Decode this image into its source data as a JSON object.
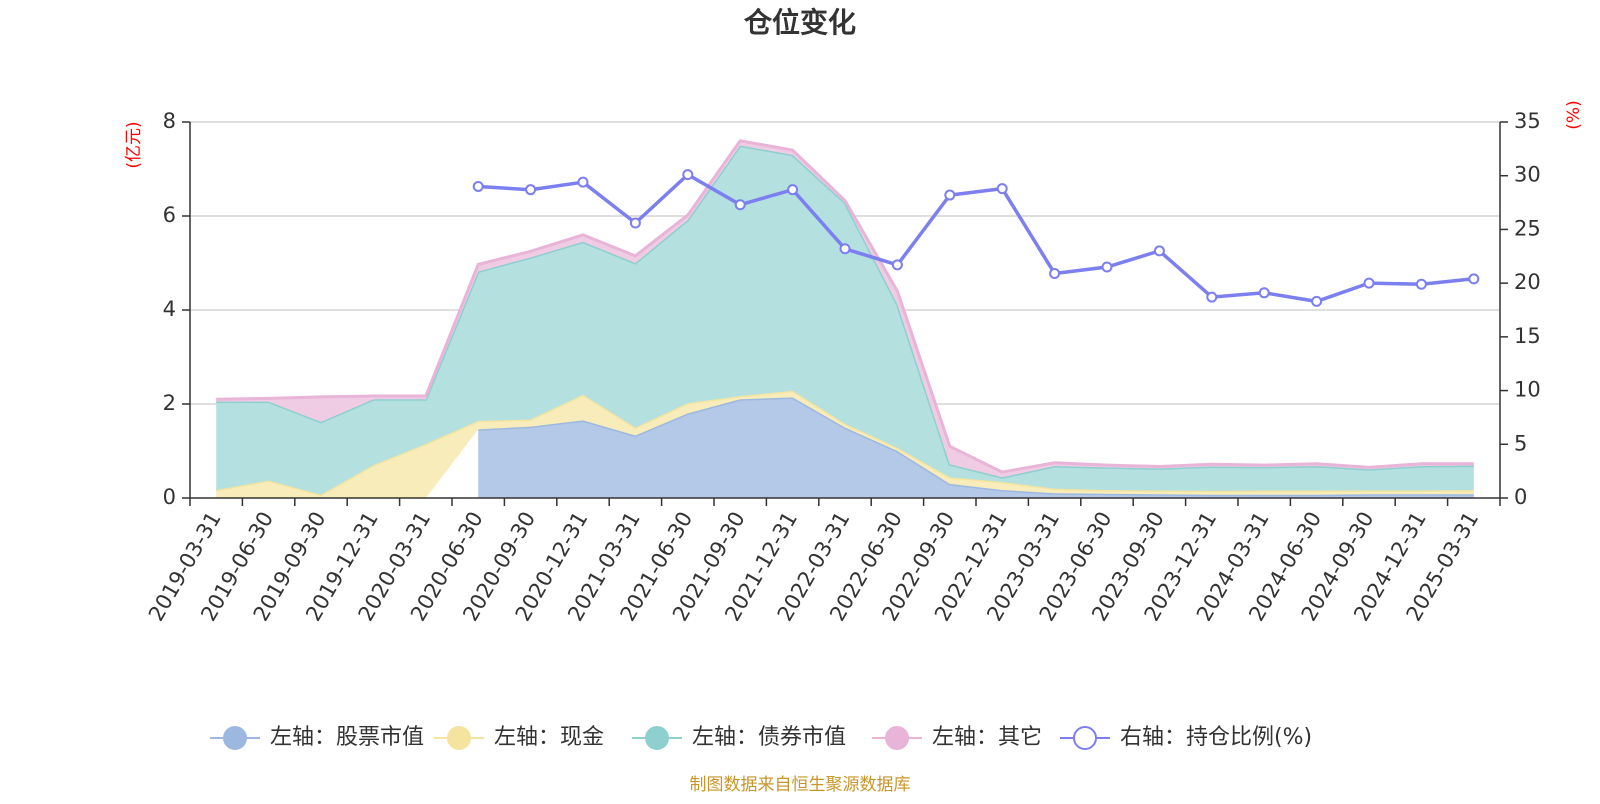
{
  "chart_data": {
    "type": "area",
    "title": "仓位变化",
    "source": "制图数据来自恒生聚源数据库",
    "left_axis": {
      "unit": "(亿元)",
      "ylim": [
        0,
        8
      ],
      "ticks": [
        "0",
        "2",
        "4",
        "6",
        "8"
      ]
    },
    "right_axis": {
      "unit": "(%)",
      "ylim": [
        0,
        35
      ],
      "ticks": [
        "0",
        "5",
        "10",
        "15",
        "20",
        "25",
        "30",
        "35"
      ]
    },
    "categories": [
      "2019-03-31",
      "2019-06-30",
      "2019-09-30",
      "2019-12-31",
      "2020-03-31",
      "2020-06-30",
      "2020-09-30",
      "2020-12-31",
      "2021-03-31",
      "2021-06-30",
      "2021-09-30",
      "2021-12-31",
      "2022-03-31",
      "2022-06-30",
      "2022-09-30",
      "2022-12-31",
      "2023-03-31",
      "2023-06-30",
      "2023-09-30",
      "2023-12-31",
      "2024-03-31",
      "2024-06-30",
      "2024-09-30",
      "2024-12-31",
      "2025-03-31"
    ],
    "series": [
      {
        "name": "左轴：股票市值",
        "axis": "left",
        "color": "#9db8e0",
        "fill": "#b4c9e8",
        "values": [
          null,
          null,
          null,
          null,
          null,
          1.46,
          1.52,
          1.65,
          1.33,
          1.8,
          2.1,
          2.14,
          1.5,
          1.0,
          0.3,
          0.17,
          0.1,
          0.09,
          0.08,
          0.07,
          0.07,
          0.07,
          0.08,
          0.08,
          0.08
        ]
      },
      {
        "name": "左轴：现金",
        "axis": "left",
        "color": "#f5e4a0",
        "fill": "#f8ecbb",
        "values": [
          0.17,
          0.37,
          0.07,
          0.7,
          1.15,
          0.18,
          0.15,
          0.55,
          0.17,
          0.22,
          0.07,
          0.14,
          0.08,
          0.07,
          0.14,
          0.17,
          0.1,
          0.08,
          0.08,
          0.08,
          0.09,
          0.09,
          0.08,
          0.08,
          0.09
        ]
      },
      {
        "name": "左轴：债券市值",
        "axis": "left",
        "color": "#8ecfd0",
        "fill": "#b4e0e0",
        "values": [
          1.88,
          1.68,
          1.55,
          1.4,
          0.95,
          3.18,
          3.45,
          3.25,
          3.5,
          3.9,
          5.33,
          5.02,
          4.7,
          3.05,
          0.28,
          0.1,
          0.48,
          0.48,
          0.47,
          0.52,
          0.5,
          0.52,
          0.45,
          0.52,
          0.52
        ]
      },
      {
        "name": "左轴：其它",
        "axis": "left",
        "color": "#e8b4d8",
        "fill": "#f0cce4",
        "values": [
          0.05,
          0.07,
          0.53,
          0.07,
          0.07,
          0.15,
          0.13,
          0.15,
          0.15,
          0.1,
          0.1,
          0.1,
          0.05,
          0.28,
          0.38,
          0.11,
          0.07,
          0.05,
          0.04,
          0.05,
          0.04,
          0.05,
          0.04,
          0.05,
          0.04
        ]
      },
      {
        "name": "右轴：持仓比例(%)",
        "axis": "right",
        "color": "#7b7fef",
        "values": [
          null,
          null,
          null,
          null,
          null,
          29.0,
          28.7,
          29.4,
          25.6,
          30.1,
          27.3,
          28.7,
          23.2,
          21.7,
          28.2,
          28.8,
          20.9,
          21.5,
          23.0,
          18.7,
          19.1,
          18.3,
          20.0,
          19.9,
          20.4
        ]
      }
    ]
  }
}
